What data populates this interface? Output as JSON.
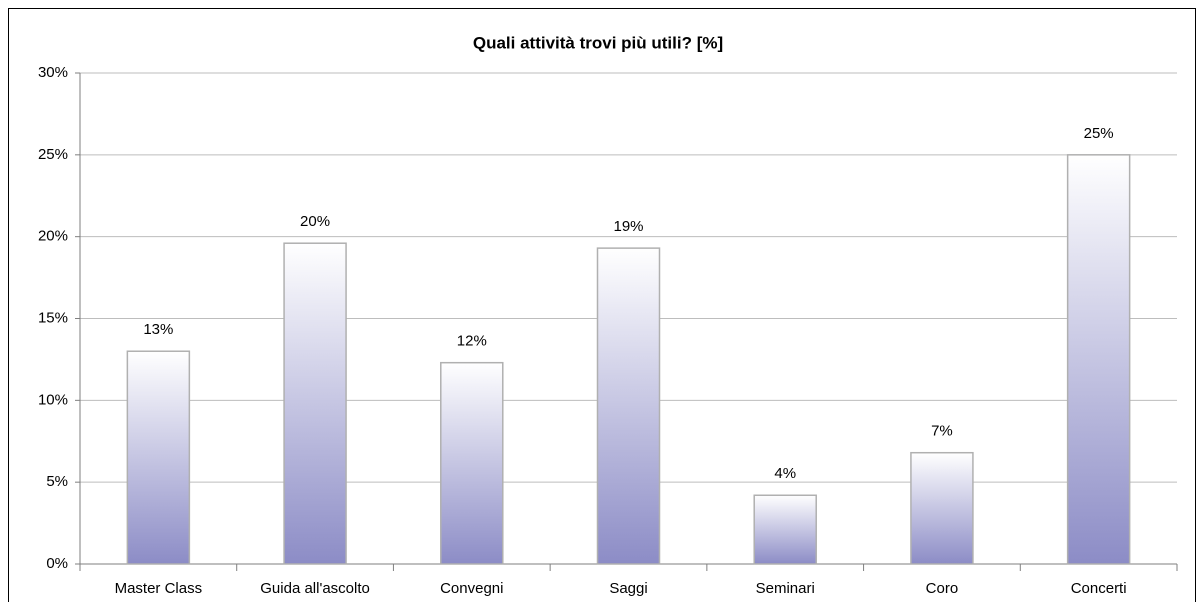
{
  "chart_data": {
    "type": "bar",
    "title": "Quali attività trovi più utili? [%]",
    "categories": [
      "Master Class",
      "Guida all'ascolto",
      "Convegni",
      "Saggi",
      "Seminari",
      "Coro",
      "Concerti"
    ],
    "values": [
      13.0,
      19.6,
      12.3,
      19.3,
      4.2,
      6.8,
      25.0
    ],
    "value_labels": [
      "13%",
      "20%",
      "12%",
      "19%",
      "4%",
      "7%",
      "25%"
    ],
    "color": "#8c8cc6",
    "ylim": [
      0,
      30
    ],
    "yticks": [
      {
        "value": 0,
        "label": "0%"
      },
      {
        "value": 5,
        "label": "5%"
      },
      {
        "value": 10,
        "label": "10%"
      },
      {
        "value": 15,
        "label": "15%"
      },
      {
        "value": 20,
        "label": "20%"
      },
      {
        "value": 25,
        "label": "25%"
      },
      {
        "value": 30,
        "label": "30%"
      }
    ],
    "grid": true
  }
}
